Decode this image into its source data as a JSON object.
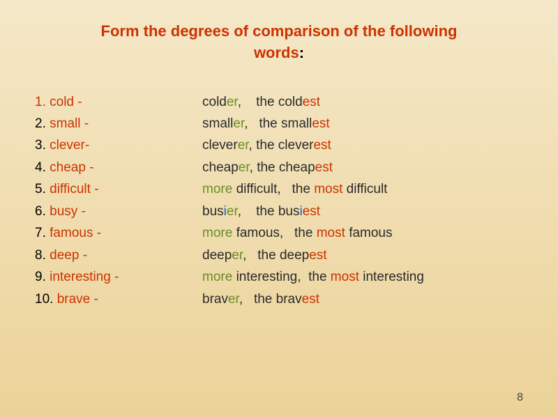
{
  "title_line1_part1": "Form the degrees of comparison of the following",
  "title_line2": "words",
  "colon": ":",
  "rows": [
    {
      "num": "1.",
      "base": "cold",
      "comp_root": "cold",
      "comp_suf": "er",
      "sup_root": "the cold",
      "sup_suf": "est",
      "num_red": true
    },
    {
      "num": "2.",
      "base": "small",
      "comp_root": "small",
      "comp_suf": "er",
      "sup_root": "the small",
      "sup_suf": "est"
    },
    {
      "num": "3.",
      "base": "clever",
      "comp_root": "clever",
      "comp_suf": "er",
      "sup_root": "the clever",
      "sup_suf": "est",
      "dash_attached": true
    },
    {
      "num": "4.",
      "base": "cheap",
      "comp_root": "cheap",
      "comp_suf": "er",
      "sup_root": "the cheap",
      "sup_suf": "est"
    },
    {
      "num": "5.",
      "base": "difficult",
      "comp_more": "more",
      "comp_word": "difficult",
      "sup_most": "the most",
      "sup_word": "difficult"
    },
    {
      "num": "6.",
      "base": "busy",
      "comp_root_pre": "bus",
      "comp_i": "i",
      "comp_suf": "er",
      "sup_root_pre": "the bus",
      "sup_i": "i",
      "sup_suf": "est"
    },
    {
      "num": "7.",
      "base": "famous",
      "comp_more": "more",
      "comp_word": "famous",
      "sup_most": "the most",
      "sup_word": "famous"
    },
    {
      "num": "8.",
      "base": "deep",
      "comp_root": "deep",
      "comp_suf": "er",
      "sup_root": "the deep",
      "sup_suf": "est"
    },
    {
      "num": "9.",
      "base": "interesting",
      "comp_more": "more",
      "comp_word": "interesting",
      "sup_most": "the most",
      "sup_word": "interesting"
    },
    {
      "num": "10.",
      "base": "brave",
      "comp_root": "brav",
      "comp_suf": "er",
      "sup_root": "the brav",
      "sup_suf": "est"
    }
  ],
  "page_number": "8",
  "colors": {
    "red": "#cc3300",
    "dark": "#2a2a2a",
    "green": "#6b8e23",
    "blue": "#0066cc"
  }
}
